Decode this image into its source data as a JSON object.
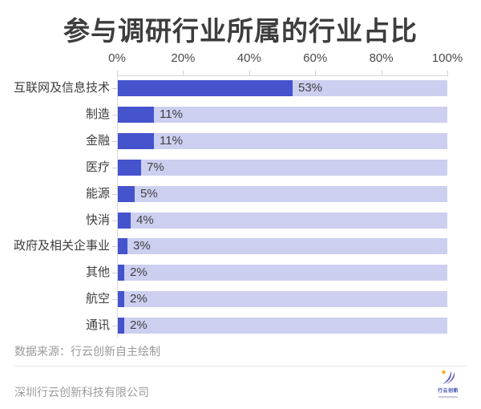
{
  "title": "参与调研行业所属的行业占比",
  "chart_data": {
    "type": "bar",
    "orientation": "horizontal",
    "title": "参与调研行业所属的行业占比",
    "categories": [
      "互联网及信息技术",
      "制造",
      "金融",
      "医疗",
      "能源",
      "快消",
      "政府及相关企事业",
      "其他",
      "航空",
      "通讯"
    ],
    "values": [
      53,
      11,
      11,
      7,
      5,
      4,
      3,
      2,
      2,
      2
    ],
    "value_labels": [
      "53%",
      "11%",
      "11%",
      "7%",
      "5%",
      "4%",
      "3%",
      "2%",
      "2%",
      "2%"
    ],
    "x_tick_labels": [
      "0%",
      "20%",
      "40%",
      "60%",
      "80%",
      "100%"
    ],
    "x_tick_values": [
      0,
      20,
      40,
      60,
      80,
      100
    ],
    "xlim": [
      0,
      100
    ],
    "grid": false,
    "legend": "none",
    "bar_color": "#4553cd",
    "track_color": "#cdcff0"
  },
  "footer": {
    "source": "数据来源：行云创新自主绘制",
    "company": "深圳行云创新科技有限公司",
    "logo_text": "行云创新"
  },
  "colors": {
    "title_text": "#3d3d3d",
    "axis_line": "#d9d9d9",
    "tick_label": "#4a4a4a",
    "value_label": "#3f3f3f",
    "footer_text": "#999999",
    "logo_yellow": "#f3b229",
    "logo_blue": "#4553cd",
    "logo_purple": "#7458ad"
  }
}
